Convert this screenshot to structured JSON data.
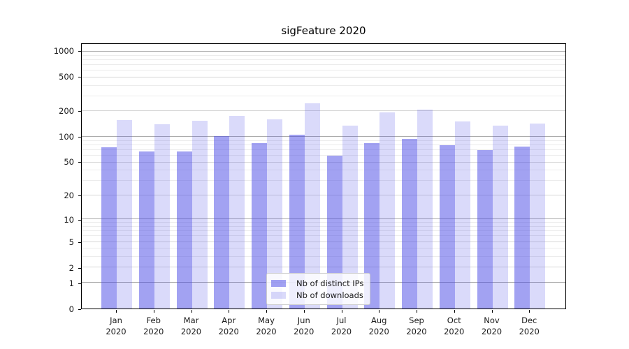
{
  "chart_data": {
    "type": "bar",
    "title": "sigFeature 2020",
    "year": "2020",
    "categories": [
      "Jan",
      "Feb",
      "Mar",
      "Apr",
      "May",
      "Jun",
      "Jul",
      "Aug",
      "Sep",
      "Oct",
      "Nov",
      "Dec"
    ],
    "series": [
      {
        "name": "Nb of distinct IPs",
        "color": "rgba(69,69,229,0.5)",
        "values": [
          76,
          67,
          67,
          103,
          85,
          106,
          60,
          85,
          94,
          80,
          70,
          77
        ]
      },
      {
        "name": "Nb of downloads",
        "color": "rgba(69,69,229,0.2)",
        "values": [
          157,
          142,
          156,
          177,
          160,
          248,
          137,
          194,
          209,
          151,
          135,
          144
        ]
      }
    ],
    "y_axis": {
      "scale": "log1p",
      "max": 1228,
      "ticks": [
        0,
        1,
        2,
        5,
        10,
        20,
        50,
        100,
        200,
        500,
        1000
      ],
      "minor_ticks": [
        3,
        4,
        6,
        7,
        8,
        9,
        30,
        40,
        60,
        70,
        80,
        90,
        300,
        400,
        600,
        700,
        800,
        900
      ]
    },
    "grid": "on",
    "legend_position": "lower center inside"
  }
}
